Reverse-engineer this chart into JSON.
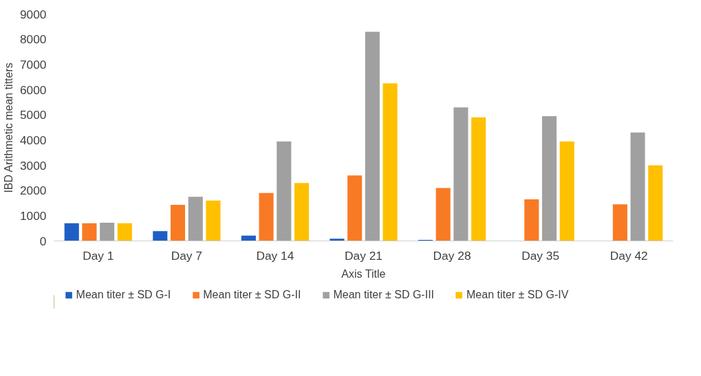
{
  "chart_data": {
    "type": "bar",
    "xlabel": "Axis Title",
    "ylabel": "IBD Arithmetic mean titters",
    "categories": [
      "Day 1",
      "Day 7",
      "Day 14",
      "Day 21",
      "Day 28",
      "Day 35",
      "Day 42"
    ],
    "series": [
      {
        "name": "Mean titer ± SD G-I",
        "color": "#1f5fc4",
        "values": [
          700,
          390,
          210,
          90,
          40,
          0,
          0
        ]
      },
      {
        "name": "Mean titer ± SD G-II",
        "color": "#f97a25",
        "values": [
          700,
          1430,
          1900,
          2600,
          2100,
          1650,
          1450
        ]
      },
      {
        "name": "Mean titer ± SD G-III",
        "color": "#a0a0a0",
        "values": [
          720,
          1750,
          3950,
          8300,
          5300,
          4950,
          4300
        ]
      },
      {
        "name": "Mean titer ± SD G-IV",
        "color": "#ffc000",
        "values": [
          700,
          1600,
          2300,
          6250,
          4900,
          3950,
          3000
        ]
      }
    ],
    "ylim": [
      0,
      9000
    ],
    "yticks": [
      0,
      1000,
      2000,
      3000,
      4000,
      5000,
      6000,
      7000,
      8000,
      9000
    ],
    "grid": false,
    "legend": "bottom"
  }
}
